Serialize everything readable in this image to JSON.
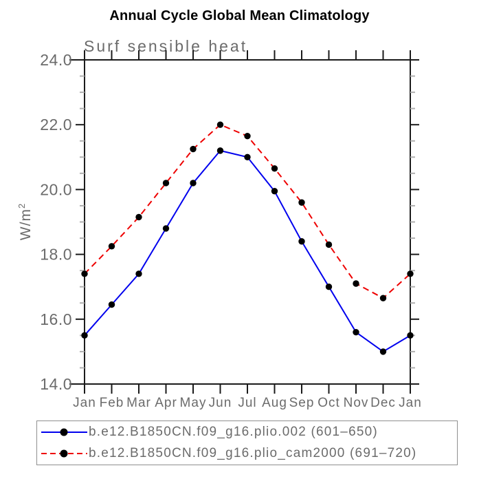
{
  "figure": {
    "title": "Annual Cycle Global Mean Climatology",
    "subtitle": "Surf sensible heat",
    "ylabel_base": "W/m",
    "ylabel_sup": "2"
  },
  "chart_data": {
    "type": "line",
    "title": "Annual Cycle Global Mean Climatology",
    "subtitle": "Surf sensible heat",
    "xlabel": "",
    "ylabel": "W/m^2",
    "categories": [
      "Jan",
      "Feb",
      "Mar",
      "Apr",
      "May",
      "Jun",
      "Jul",
      "Aug",
      "Sep",
      "Oct",
      "Nov",
      "Dec",
      "Jan"
    ],
    "ylim": [
      14.0,
      24.0
    ],
    "yticks": {
      "major": [
        14.0,
        16.0,
        18.0,
        20.0,
        22.0,
        24.0
      ],
      "labels": [
        "14.0",
        "16.0",
        "18.0",
        "20.0",
        "22.0",
        "24.0"
      ],
      "minor_step": 0.5
    },
    "grid": false,
    "legend_position": "bottom-left",
    "series": [
      {
        "name": "b.e12.B1850CN.f09_g16.plio.002 (601–650)",
        "color": "#0000ee",
        "line_style": "solid",
        "marker": "filled-circle",
        "marker_color": "#000000",
        "values": [
          15.5,
          16.45,
          17.4,
          18.8,
          20.2,
          21.2,
          21.0,
          19.95,
          18.4,
          17.0,
          15.6,
          15.0,
          15.5
        ]
      },
      {
        "name": "b.e12.B1850CN.f09_g16.plio_cam2000 (691–720)",
        "color": "#ee0000",
        "line_style": "dashed",
        "marker": "filled-circle",
        "marker_color": "#000000",
        "values": [
          17.4,
          18.25,
          19.15,
          20.2,
          21.25,
          22.0,
          21.65,
          20.65,
          19.6,
          18.3,
          17.1,
          16.65,
          17.4
        ]
      }
    ]
  },
  "colors": {
    "axis": "#1a1a1a",
    "minor_tick": "#b0b0b0",
    "label_gray": "#6b6b6b",
    "series_blue": "#0000ee",
    "series_red": "#ee0000",
    "marker_black": "#000000"
  }
}
